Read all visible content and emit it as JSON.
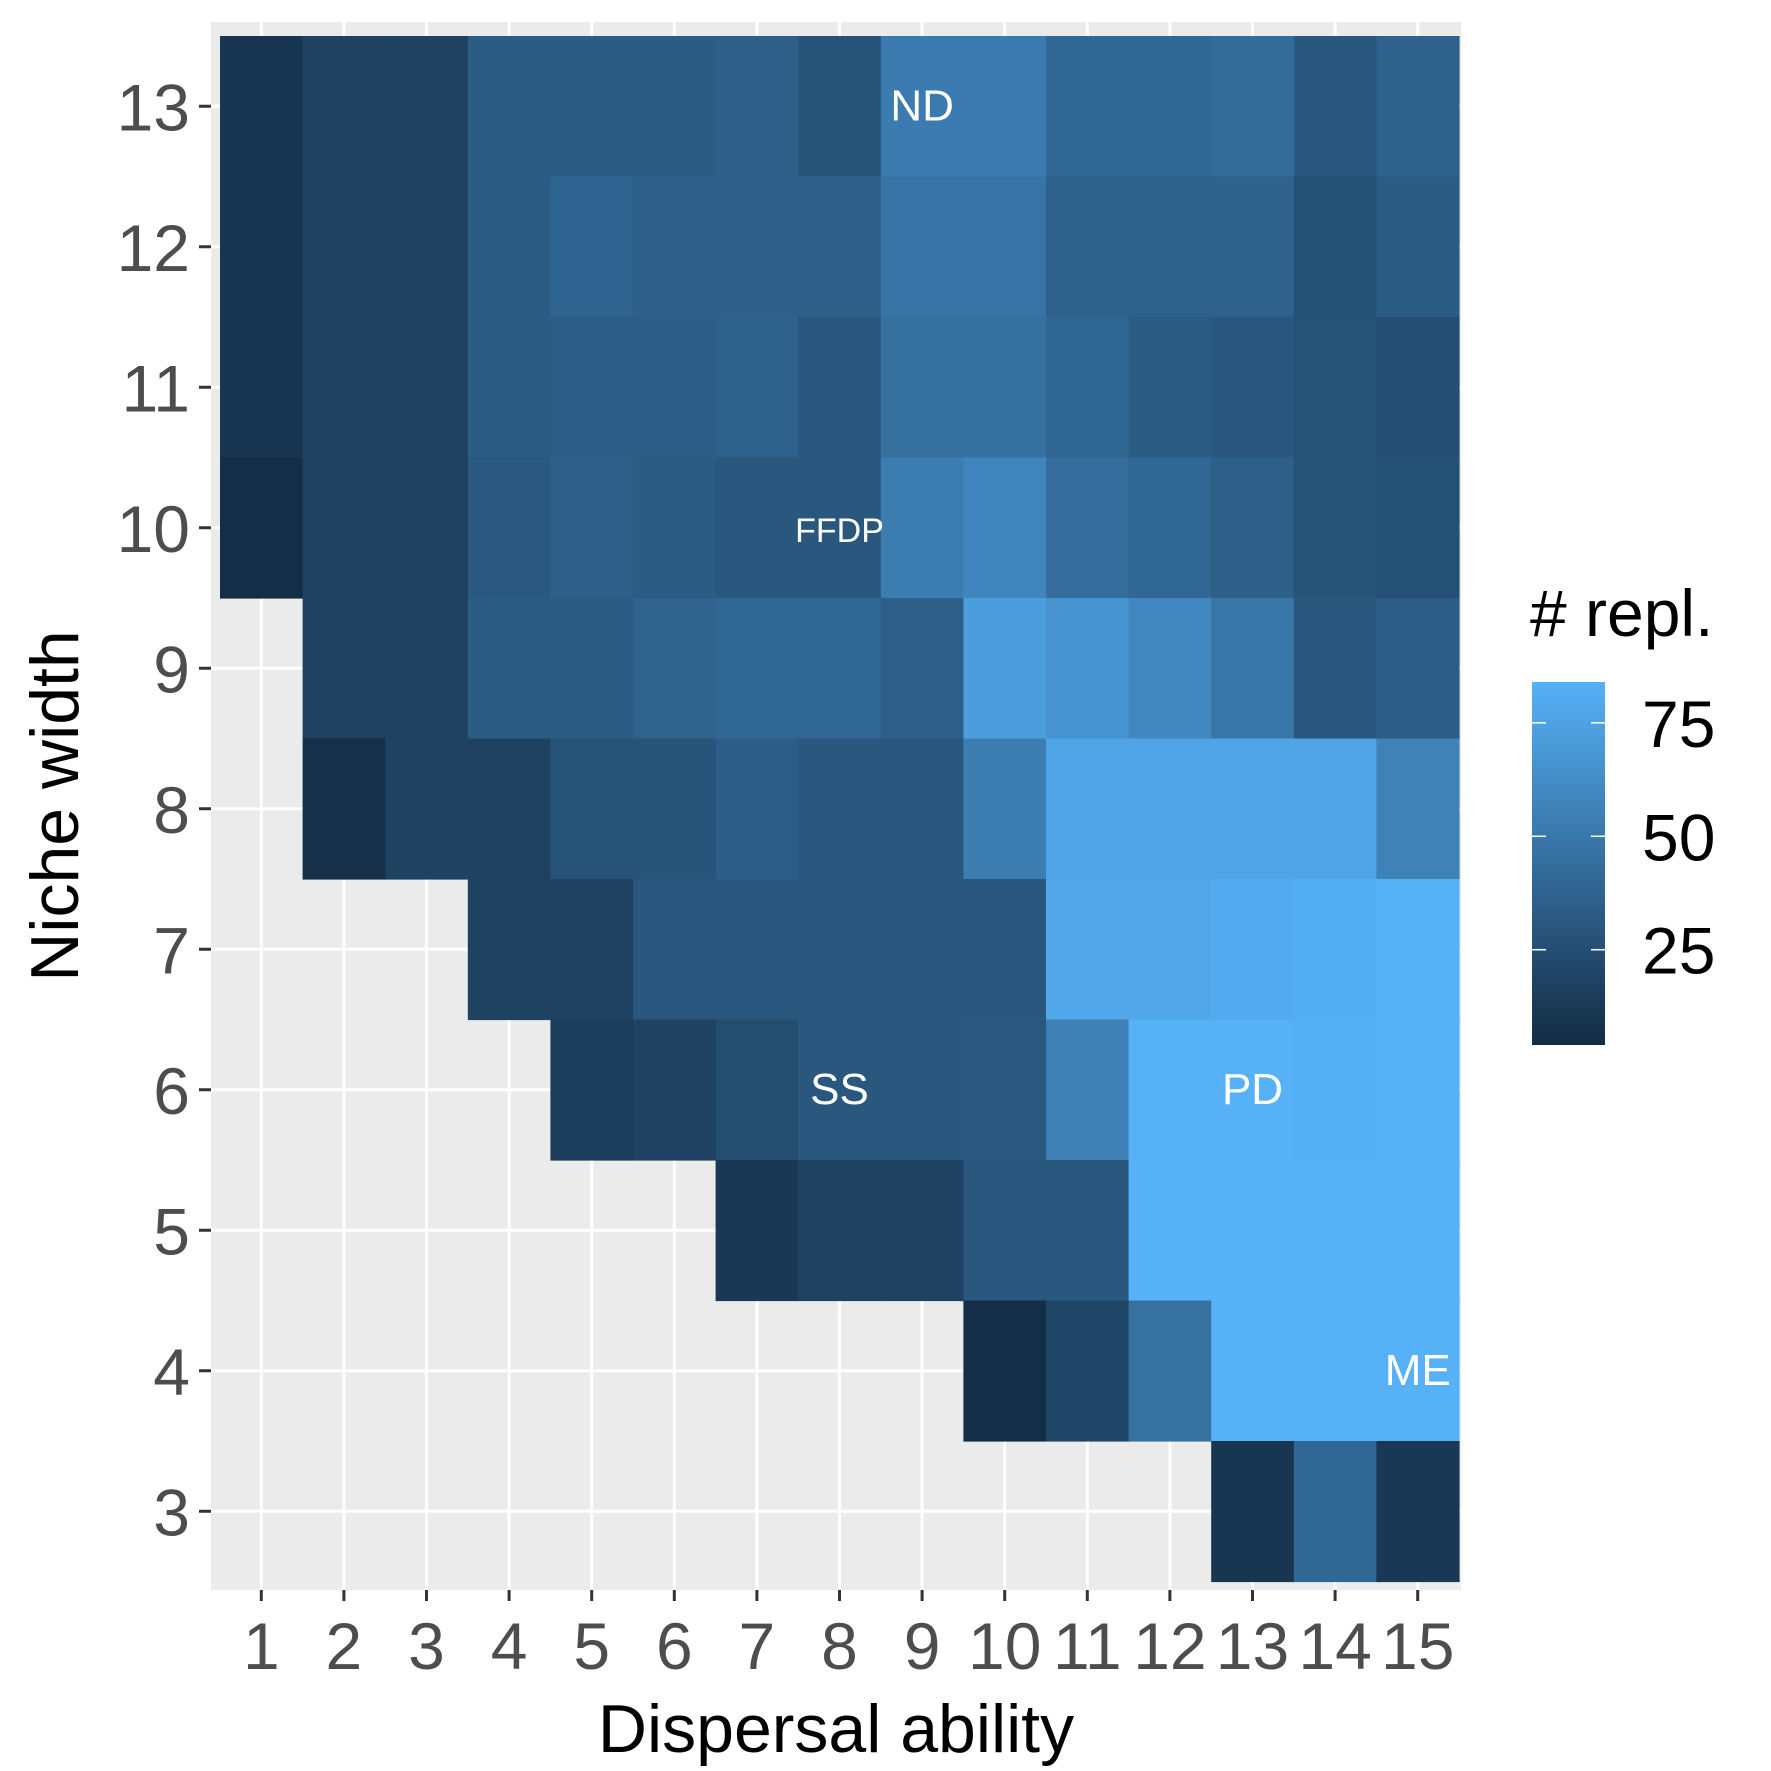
{
  "chart_data": {
    "type": "heatmap",
    "title": "",
    "xlabel": "Dispersal ability",
    "ylabel": "Niche width",
    "x": [
      1,
      2,
      3,
      4,
      5,
      6,
      7,
      8,
      9,
      10,
      11,
      12,
      13,
      14,
      15
    ],
    "y": [
      3,
      4,
      5,
      6,
      7,
      8,
      9,
      10,
      11,
      12,
      13
    ],
    "x_tick_labels": [
      "1",
      "2",
      "3",
      "4",
      "5",
      "6",
      "7",
      "8",
      "9",
      "10",
      "11",
      "12",
      "13",
      "14",
      "15"
    ],
    "y_tick_labels": [
      "3",
      "4",
      "5",
      "6",
      "7",
      "8",
      "9",
      "10",
      "11",
      "12",
      "13"
    ],
    "grid": true,
    "legend": {
      "title": "# repl.",
      "position": "right",
      "ticks": [
        25,
        50,
        75
      ],
      "tick_labels": [
        "25",
        "50",
        "75"
      ],
      "range": [
        4,
        84
      ],
      "low_color": "#132B43",
      "high_color": "#56B1F7"
    },
    "rows": [
      {
        "y": 13,
        "values": [
          10,
          18,
          18,
          33,
          33,
          33,
          35,
          28,
          52,
          52,
          40,
          40,
          42,
          30,
          36
        ]
      },
      {
        "y": 12,
        "values": [
          10,
          18,
          18,
          33,
          38,
          35,
          35,
          35,
          47,
          47,
          36,
          36,
          36,
          26,
          33
        ]
      },
      {
        "y": 11,
        "values": [
          10,
          18,
          18,
          33,
          34,
          34,
          36,
          30,
          45,
          45,
          39,
          33,
          30,
          27,
          25
        ]
      },
      {
        "y": 10,
        "values": [
          6,
          18,
          18,
          31,
          35,
          33,
          30,
          30,
          53,
          58,
          44,
          40,
          35,
          28,
          26
        ]
      },
      {
        "y": 9,
        "values": [
          null,
          18,
          18,
          33,
          33,
          37,
          40,
          40,
          35,
          72,
          66,
          59,
          49,
          30,
          34
        ]
      },
      {
        "y": 8,
        "values": [
          null,
          7,
          18,
          18,
          28,
          28,
          34,
          30,
          30,
          53,
          76,
          76,
          76,
          76,
          56
        ]
      },
      {
        "y": 7,
        "values": [
          null,
          null,
          null,
          18,
          18,
          30,
          30,
          30,
          30,
          30,
          78,
          78,
          80,
          82,
          84
        ]
      },
      {
        "y": 6,
        "values": [
          null,
          null,
          null,
          null,
          14,
          18,
          24,
          30,
          30,
          31,
          55,
          84,
          84,
          83,
          84
        ]
      },
      {
        "y": 5,
        "values": [
          null,
          null,
          null,
          null,
          null,
          null,
          12,
          18,
          18,
          30,
          30,
          84,
          84,
          84,
          84
        ]
      },
      {
        "y": 4,
        "values": [
          null,
          null,
          null,
          null,
          null,
          null,
          null,
          null,
          null,
          6,
          20,
          46,
          84,
          84,
          84
        ]
      },
      {
        "y": 3,
        "values": [
          null,
          null,
          null,
          null,
          null,
          null,
          null,
          null,
          null,
          null,
          null,
          null,
          10,
          40,
          12
        ]
      }
    ],
    "annotations": [
      {
        "text": "ND",
        "x": 9,
        "y": 13
      },
      {
        "text": "FFDP",
        "x": 8,
        "y": 10
      },
      {
        "text": "SS",
        "x": 8,
        "y": 6
      },
      {
        "text": "PD",
        "x": 13,
        "y": 6
      },
      {
        "text": "ME",
        "x": 15,
        "y": 4
      }
    ]
  }
}
